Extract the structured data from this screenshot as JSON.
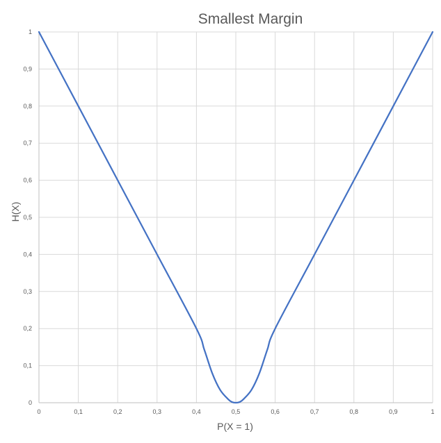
{
  "chart_data": {
    "type": "line",
    "title": "Smallest Margin",
    "xlabel": "P(X = 1)",
    "ylabel": "H(X)",
    "xlim": [
      0,
      1
    ],
    "ylim": [
      0,
      1
    ],
    "grid": true,
    "legend": "none",
    "x_ticks": [
      "0",
      "0,1",
      "0,2",
      "0,3",
      "0,4",
      "0,5",
      "0,6",
      "0,7",
      "0,8",
      "0,9",
      "1"
    ],
    "y_ticks": [
      "0",
      "0,1",
      "0,2",
      "0,3",
      "0,4",
      "0,5",
      "0,6",
      "0,7",
      "0,8",
      "0,9",
      "1"
    ],
    "series": [
      {
        "color": "#4472c4",
        "x": [
          0,
          0.1,
          0.2,
          0.3,
          0.4,
          0.42,
          0.44,
          0.46,
          0.48,
          0.49,
          0.5,
          0.51,
          0.52,
          0.54,
          0.56,
          0.58,
          0.6,
          0.7,
          0.8,
          0.9,
          1
        ],
        "y": [
          1,
          0.8,
          0.6,
          0.4,
          0.2,
          0.143,
          0.08,
          0.035,
          0.01,
          0.002,
          0,
          0.002,
          0.01,
          0.035,
          0.08,
          0.143,
          0.2,
          0.4,
          0.6,
          0.8,
          1
        ]
      }
    ]
  }
}
